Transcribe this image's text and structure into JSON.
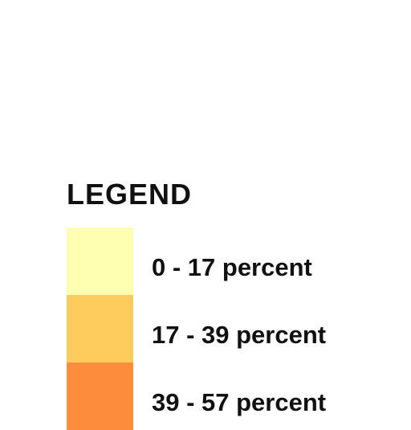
{
  "legend": {
    "title": "LEGEND",
    "items": [
      {
        "label": "0 - 17 percent",
        "color": "#ffffb2"
      },
      {
        "label": "17 - 39 percent",
        "color": "#fecc5c"
      },
      {
        "label": "39 - 57 percent",
        "color": "#fd8d3c"
      }
    ]
  }
}
